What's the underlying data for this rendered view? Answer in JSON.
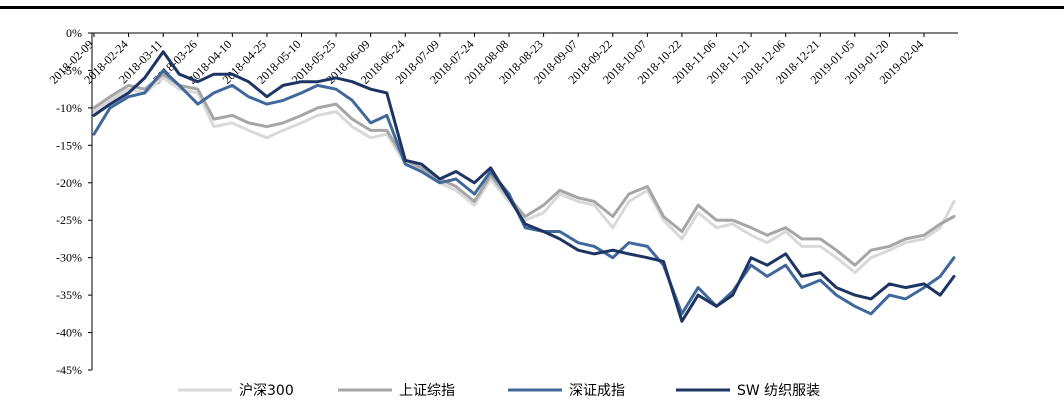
{
  "chart_data": {
    "type": "line",
    "title": "",
    "xlabel": "",
    "ylabel": "",
    "ylim": [
      -45,
      0
    ],
    "y_ticks": [
      "0%",
      "-5%",
      "-10%",
      "-15%",
      "-20%",
      "-25%",
      "-30%",
      "-35%",
      "-40%",
      "-45%"
    ],
    "x_ticks": [
      "2018-02-09",
      "2018-02-24",
      "2018-03-11",
      "2018-03-26",
      "2018-04-10",
      "2018-04-25",
      "2018-05-10",
      "2018-05-25",
      "2018-06-09",
      "2018-06-24",
      "2018-07-09",
      "2018-07-24",
      "2018-08-08",
      "2018-08-23",
      "2018-09-07",
      "2018-09-22",
      "2018-10-07",
      "2018-10-22",
      "2018-11-06",
      "2018-11-21",
      "2018-12-06",
      "2018-12-21",
      "2019-01-05",
      "2019-01-20",
      "2019-02-04"
    ],
    "grid": false,
    "legend_position": "bottom",
    "x": [
      "2018-02-09",
      "2018-02-16",
      "2018-02-24",
      "2018-03-03",
      "2018-03-11",
      "2018-03-18",
      "2018-03-26",
      "2018-04-02",
      "2018-04-10",
      "2018-04-17",
      "2018-04-25",
      "2018-05-02",
      "2018-05-10",
      "2018-05-17",
      "2018-05-25",
      "2018-06-01",
      "2018-06-09",
      "2018-06-16",
      "2018-06-24",
      "2018-07-01",
      "2018-07-09",
      "2018-07-16",
      "2018-07-24",
      "2018-07-31",
      "2018-08-08",
      "2018-08-15",
      "2018-08-23",
      "2018-08-30",
      "2018-09-07",
      "2018-09-14",
      "2018-09-22",
      "2018-09-29",
      "2018-10-07",
      "2018-10-14",
      "2018-10-22",
      "2018-10-29",
      "2018-11-06",
      "2018-11-13",
      "2018-11-21",
      "2018-11-28",
      "2018-12-06",
      "2018-12-13",
      "2018-12-21",
      "2018-12-28",
      "2019-01-05",
      "2019-01-12",
      "2019-01-20",
      "2019-01-27",
      "2019-02-04",
      "2019-02-11",
      "2019-02-17"
    ],
    "series": [
      {
        "name": "沪深300",
        "color": "#d9d9d9",
        "values": [
          -10.5,
          -9,
          -7.5,
          -8,
          -6,
          -7.5,
          -8,
          -12.5,
          -12,
          -13,
          -14,
          -13,
          -12,
          -11,
          -10.5,
          -12.5,
          -14,
          -13.5,
          -17.5,
          -18.5,
          -20,
          -21,
          -23,
          -19.5,
          -22.5,
          -25,
          -24,
          -21.5,
          -22.5,
          -23,
          -26,
          -22.5,
          -21,
          -25,
          -27.5,
          -24,
          -26,
          -25.5,
          -27,
          -28,
          -26.5,
          -28.5,
          -28.5,
          -30,
          -32,
          -30,
          -29,
          -28,
          -27.5,
          -26,
          -22.5
        ]
      },
      {
        "name": "上证综指",
        "color": "#a6a6a6",
        "values": [
          -10,
          -8.5,
          -7,
          -7.5,
          -5.5,
          -7,
          -7.5,
          -11.5,
          -11,
          -12,
          -12.5,
          -12,
          -11,
          -10,
          -9.5,
          -11.5,
          -13,
          -13,
          -17,
          -18,
          -19.5,
          -20.5,
          -22.5,
          -19,
          -22,
          -24.5,
          -23,
          -21,
          -22,
          -22.5,
          -24.5,
          -21.5,
          -20.5,
          -24.5,
          -26.5,
          -23,
          -25,
          -25,
          -26,
          -27,
          -26,
          -27.5,
          -27.5,
          -29,
          -31,
          -29,
          -28.5,
          -27.5,
          -27,
          -25.5,
          -24.5
        ]
      },
      {
        "name": "深证成指",
        "color": "#41689a",
        "values": [
          -13.5,
          -10,
          -8.5,
          -8,
          -5,
          -7,
          -9.5,
          -8,
          -7,
          -8.5,
          -9.5,
          -9,
          -8,
          -7,
          -7.5,
          -9,
          -12,
          -11,
          -17.5,
          -18.5,
          -20,
          -19.5,
          -21.5,
          -18.5,
          -21.5,
          -26,
          -26.5,
          -26.5,
          -28,
          -28.5,
          -30,
          -28,
          -28.5,
          -31,
          -37.5,
          -34,
          -36.5,
          -34.5,
          -31,
          -32.5,
          -31,
          -34,
          -33,
          -35,
          -36.5,
          -37.5,
          -35,
          -35.5,
          -34,
          -32.5,
          -30
        ]
      },
      {
        "name": "SW 纺织服装",
        "color": "#1c3563",
        "values": [
          -11,
          -9.5,
          -8,
          -6,
          -2.5,
          -5.5,
          -6.5,
          -5.5,
          -5.5,
          -6.5,
          -8.5,
          -7,
          -6.5,
          -6.5,
          -6,
          -6.5,
          -7.5,
          -8,
          -17,
          -17.5,
          -19.5,
          -18.5,
          -20,
          -18,
          -22,
          -25.5,
          -26.5,
          -27.5,
          -29,
          -29.5,
          -29,
          -29.5,
          -30,
          -30.5,
          -38.5,
          -35,
          -36.5,
          -35,
          -30,
          -31,
          -29.5,
          -32.5,
          -32,
          -34,
          -35,
          -35.5,
          -33.5,
          -34,
          -33.5,
          -35,
          -32.5
        ]
      }
    ]
  }
}
